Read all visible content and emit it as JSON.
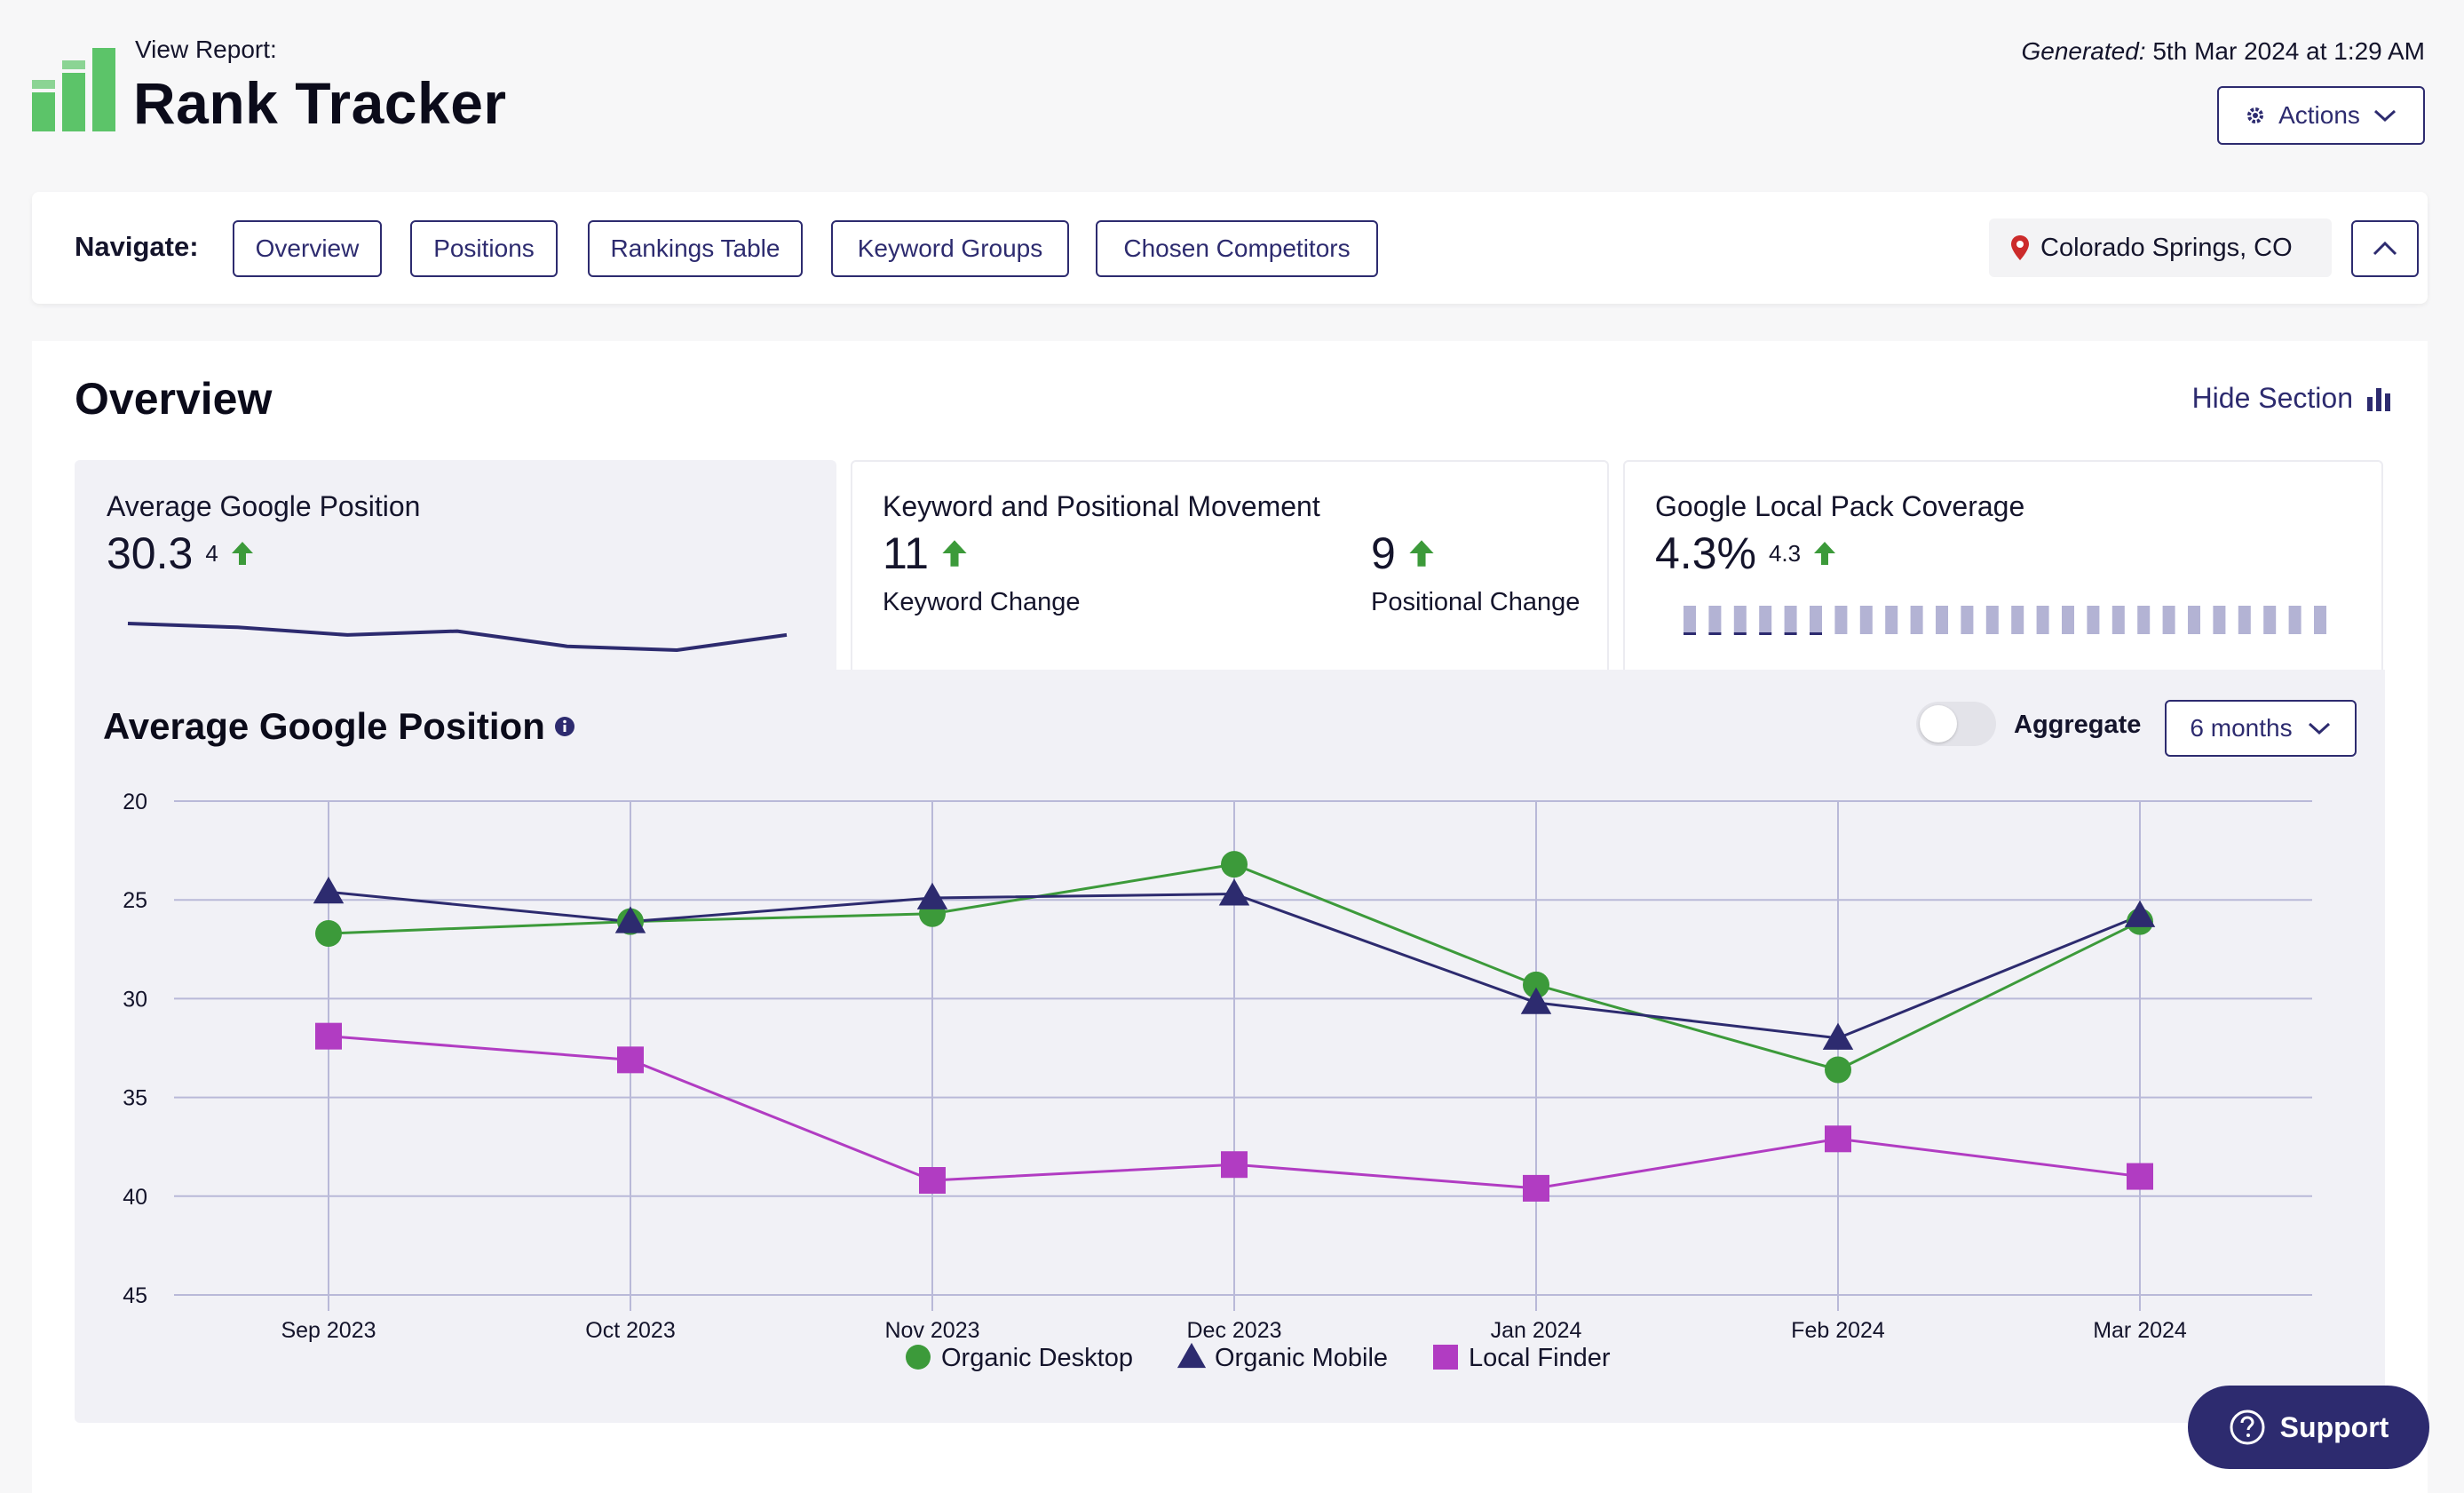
{
  "header": {
    "view_label": "View Report:",
    "title": "Rank Tracker",
    "generated_label": "Generated:",
    "generated_value": "5th Mar 2024 at 1:29 AM",
    "actions_label": "Actions",
    "logo_color": "#5cc469"
  },
  "nav": {
    "label": "Navigate:",
    "items": [
      "Overview",
      "Positions",
      "Rankings Table",
      "Keyword Groups",
      "Chosen Competitors"
    ],
    "location": "Colorado Springs, CO",
    "accent": "#2d2b6f"
  },
  "overview": {
    "title": "Overview",
    "hide_label": "Hide Section",
    "cards": {
      "avg_position": {
        "title": "Average Google Position",
        "value": "30.3",
        "change": "4",
        "sparkline": [
          30.6,
          30.7,
          30.9,
          30.8,
          31.2,
          31.3,
          30.9
        ]
      },
      "movement": {
        "title": "Keyword and Positional Movement",
        "keyword_value": "11",
        "keyword_label": "Keyword Change",
        "positional_value": "9",
        "positional_label": "Positional Change"
      },
      "local_pack": {
        "title": "Google Local Pack Coverage",
        "value": "4.3%",
        "change": "4.3",
        "bar_count": 26,
        "covered_bars": 6
      }
    }
  },
  "chart_section": {
    "aggregate_label": "Aggregate",
    "aggregate_on": false,
    "range_label": "6 months"
  },
  "chart_data": {
    "type": "line",
    "title": "Average Google Position",
    "categories": [
      "Sep 2023",
      "Oct 2023",
      "Nov 2023",
      "Dec 2023",
      "Jan 2024",
      "Feb 2024",
      "Mar 2024"
    ],
    "y_ticks": [
      "20",
      "25",
      "30",
      "35",
      "40",
      "45"
    ],
    "ylim": [
      20,
      45
    ],
    "y_inverted": true,
    "grid": true,
    "legend_position": "bottom-center",
    "series": [
      {
        "name": "Organic Desktop",
        "marker": "circle",
        "color": "#3c9a3a",
        "values": [
          26.7,
          26.1,
          25.7,
          23.2,
          29.3,
          33.6,
          26.1
        ]
      },
      {
        "name": "Organic Mobile",
        "marker": "triangle",
        "color": "#2d2b6f",
        "values": [
          24.6,
          26.1,
          24.9,
          24.7,
          30.2,
          32.0,
          25.8
        ]
      },
      {
        "name": "Local Finder",
        "marker": "square",
        "color": "#b13cc2",
        "values": [
          31.9,
          33.1,
          39.2,
          38.4,
          39.6,
          37.1,
          39.0
        ]
      }
    ]
  },
  "support": {
    "label": "Support"
  },
  "colors": {
    "up_arrow": "#3c9a3a",
    "pin": "#cc2b2b",
    "bar_fill": "#b3b3d4",
    "bar_dark": "#2d2b6f"
  }
}
